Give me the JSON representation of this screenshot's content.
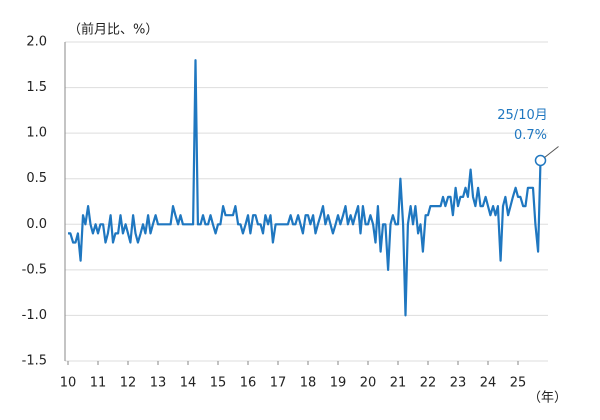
{
  "chart_data": {
    "type": "line",
    "y_label": "（前月比、%）",
    "x_label": "（年）",
    "color": "#1f77c0",
    "grid": true,
    "xlim": [
      9.9,
      26.0
    ],
    "xticks": [
      10,
      11,
      12,
      13,
      14,
      15,
      16,
      17,
      18,
      19,
      20,
      21,
      22,
      23,
      24,
      25
    ],
    "ylim": [
      -1.5,
      2.0
    ],
    "yticks": [
      {
        "value": 2.0,
        "label": "2.0"
      },
      1.5,
      {
        "value": 1.0,
        "label": "1.0"
      },
      0.5,
      {
        "value": 0,
        "label": "0.0"
      },
      -0.5,
      {
        "value": -1.0,
        "label": "-1.0"
      },
      -1.5
    ],
    "annotation": [
      "25/10月",
      "0.7%"
    ],
    "x": [
      10,
      10.08,
      10.17,
      10.25,
      10.33,
      10.42,
      10.5,
      10.58,
      10.67,
      10.75,
      10.83,
      10.92,
      11,
      11.08,
      11.17,
      11.25,
      11.33,
      11.42,
      11.5,
      11.58,
      11.67,
      11.75,
      11.83,
      11.92,
      12,
      12.08,
      12.17,
      12.25,
      12.33,
      12.42,
      12.5,
      12.58,
      12.67,
      12.75,
      12.83,
      12.92,
      13,
      13.08,
      13.17,
      13.25,
      13.33,
      13.42,
      13.5,
      13.58,
      13.67,
      13.75,
      13.83,
      13.92,
      14,
      14.08,
      14.17,
      14.25,
      14.33,
      14.42,
      14.5,
      14.58,
      14.67,
      14.75,
      14.83,
      14.92,
      15,
      15.08,
      15.17,
      15.25,
      15.33,
      15.42,
      15.5,
      15.58,
      15.67,
      15.75,
      15.83,
      15.92,
      16,
      16.08,
      16.17,
      16.25,
      16.33,
      16.42,
      16.5,
      16.58,
      16.67,
      16.75,
      16.83,
      16.92,
      17,
      17.08,
      17.17,
      17.25,
      17.33,
      17.42,
      17.5,
      17.58,
      17.67,
      17.75,
      17.83,
      17.92,
      18,
      18.08,
      18.17,
      18.25,
      18.33,
      18.42,
      18.5,
      18.58,
      18.67,
      18.75,
      18.83,
      18.92,
      19,
      19.08,
      19.17,
      19.25,
      19.33,
      19.42,
      19.5,
      19.58,
      19.67,
      19.75,
      19.83,
      19.92,
      20,
      20.08,
      20.17,
      20.25,
      20.33,
      20.42,
      20.5,
      20.58,
      20.67,
      20.75,
      20.83,
      20.92,
      21,
      21.08,
      21.17,
      21.25,
      21.33,
      21.42,
      21.5,
      21.58,
      21.67,
      21.75,
      21.83,
      21.92,
      22,
      22.08,
      22.17,
      22.25,
      22.33,
      22.42,
      22.5,
      22.58,
      22.67,
      22.75,
      22.83,
      22.92,
      23,
      23.08,
      23.17,
      23.25,
      23.33,
      23.42,
      23.5,
      23.58,
      23.67,
      23.75,
      23.83,
      23.92,
      24,
      24.08,
      24.17,
      24.25,
      24.33,
      24.42,
      24.5,
      24.58,
      24.67,
      24.75,
      24.83,
      24.92,
      25,
      25.08,
      25.17,
      25.25,
      25.33,
      25.42,
      25.5,
      25.58,
      25.67,
      25.75
    ],
    "values": [
      -0.1,
      -0.1,
      -0.2,
      -0.2,
      -0.1,
      -0.4,
      0.1,
      0.0,
      0.2,
      0.0,
      -0.1,
      0.0,
      -0.1,
      0.0,
      0.0,
      -0.2,
      -0.1,
      0.1,
      -0.2,
      -0.1,
      -0.1,
      0.1,
      -0.1,
      0.0,
      -0.1,
      -0.2,
      0.1,
      -0.1,
      -0.2,
      -0.1,
      0.0,
      -0.1,
      0.1,
      -0.1,
      0.0,
      0.1,
      0.0,
      0.0,
      0.0,
      0.0,
      0.0,
      0.0,
      0.2,
      0.1,
      0.0,
      0.1,
      0.0,
      0.0,
      0.0,
      0.0,
      0.0,
      1.8,
      0.0,
      0.0,
      0.1,
      0.0,
      0.0,
      0.1,
      0.0,
      -0.1,
      0.0,
      0.0,
      0.2,
      0.1,
      0.1,
      0.1,
      0.1,
      0.2,
      0.0,
      0.0,
      -0.1,
      0.0,
      0.1,
      -0.1,
      0.1,
      0.1,
      0.0,
      0.0,
      -0.1,
      0.1,
      0.0,
      0.1,
      -0.2,
      0.0,
      0.0,
      0.0,
      0.0,
      0.0,
      0.0,
      0.1,
      0.0,
      0.0,
      0.1,
      0.0,
      -0.1,
      0.1,
      0.1,
      0.0,
      0.1,
      -0.1,
      0.0,
      0.1,
      0.2,
      0.0,
      0.1,
      0.0,
      -0.1,
      0.0,
      0.1,
      0.0,
      0.1,
      0.2,
      0.0,
      0.1,
      0.0,
      0.1,
      0.2,
      -0.1,
      0.2,
      0.0,
      0.0,
      0.1,
      0.0,
      -0.2,
      0.2,
      -0.3,
      0.0,
      0.0,
      -0.5,
      0.0,
      0.1,
      0.0,
      0.0,
      0.5,
      0.0,
      -1.0,
      0.0,
      0.2,
      0.0,
      0.2,
      -0.1,
      0.0,
      -0.3,
      0.1,
      0.1,
      0.2,
      0.2,
      0.2,
      0.2,
      0.2,
      0.3,
      0.2,
      0.3,
      0.3,
      0.1,
      0.4,
      0.2,
      0.3,
      0.3,
      0.4,
      0.3,
      0.6,
      0.3,
      0.2,
      0.4,
      0.2,
      0.2,
      0.3,
      0.2,
      0.1,
      0.2,
      0.1,
      0.2,
      -0.4,
      0.2,
      0.3,
      0.1,
      0.2,
      0.3,
      0.4,
      0.3,
      0.3,
      0.2,
      0.2,
      0.4,
      0.4,
      0.4,
      0.0,
      -0.3,
      0.7
    ]
  }
}
